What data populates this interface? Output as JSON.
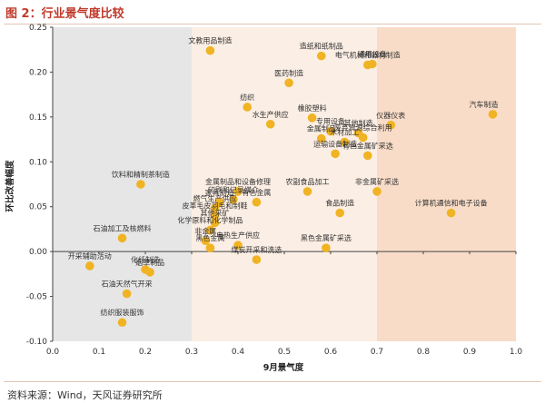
{
  "header": {
    "title": "图 2：行业景气度比较"
  },
  "footer": {
    "source": "资料来源：Wind，天风证券研究所"
  },
  "chart_data": {
    "type": "scatter",
    "xlabel": "9月景气度",
    "ylabel": "环比改善幅度",
    "xlim": [
      0.0,
      1.0
    ],
    "ylim": [
      -0.1,
      0.25
    ],
    "xticks": [
      "0.0",
      "0.1",
      "0.2",
      "0.3",
      "0.4",
      "0.5",
      "0.6",
      "0.7",
      "0.8",
      "0.9",
      "1.0"
    ],
    "yticks": [
      "0.25",
      "0.20",
      "0.15",
      "0.10",
      "0.05",
      "0.00",
      "-0.05",
      "-0.10"
    ],
    "grid": false,
    "point_color": "#f0b323",
    "regions": [
      {
        "from": 0.0,
        "to": 0.3,
        "color": "#e6e6e6"
      },
      {
        "from": 0.3,
        "to": 0.7,
        "color": "#fbeee4"
      },
      {
        "from": 0.7,
        "to": 1.0,
        "color": "#f8dcc7"
      }
    ],
    "points": [
      {
        "label": "文教用品制造",
        "x": 0.34,
        "y": 0.224
      },
      {
        "label": "造纸和纸制品",
        "x": 0.58,
        "y": 0.218
      },
      {
        "label": "通用设备",
        "x": 0.69,
        "y": 0.209
      },
      {
        "label": "电气机械和器材制造",
        "x": 0.68,
        "y": 0.208
      },
      {
        "label": "医药制造",
        "x": 0.51,
        "y": 0.188
      },
      {
        "label": "纺织",
        "x": 0.42,
        "y": 0.161
      },
      {
        "label": "橡胶塑料",
        "x": 0.56,
        "y": 0.149
      },
      {
        "label": "水生产供应",
        "x": 0.47,
        "y": 0.142
      },
      {
        "label": "汽车制造",
        "x": 0.95,
        "y": 0.153
      },
      {
        "label": "仪器仪表",
        "x": 0.73,
        "y": 0.141
      },
      {
        "label": "专用设备",
        "x": 0.6,
        "y": 0.134
      },
      {
        "label": "其他制造",
        "x": 0.66,
        "y": 0.132
      },
      {
        "label": "废弃资源综合利用",
        "x": 0.67,
        "y": 0.127
      },
      {
        "label": "木材加工",
        "x": 0.63,
        "y": 0.122
      },
      {
        "label": "金属制品",
        "x": 0.58,
        "y": 0.126
      },
      {
        "label": "运输设备制造",
        "x": 0.61,
        "y": 0.109
      },
      {
        "label": "有色金属矿采选",
        "x": 0.68,
        "y": 0.107
      },
      {
        "label": "饮料和精制茶制造",
        "x": 0.19,
        "y": 0.075
      },
      {
        "label": "金属制品和设备修理",
        "x": 0.4,
        "y": 0.067
      },
      {
        "label": "农副食品加工",
        "x": 0.55,
        "y": 0.067
      },
      {
        "label": "非金属矿采选",
        "x": 0.7,
        "y": 0.067
      },
      {
        "label": "印刷和记录媒介",
        "x": 0.39,
        "y": 0.058
      },
      {
        "label": "家具制造",
        "x": 0.36,
        "y": 0.055
      },
      {
        "label": "有色金属",
        "x": 0.44,
        "y": 0.055
      },
      {
        "label": "燃气生产供应",
        "x": 0.35,
        "y": 0.048
      },
      {
        "label": "计算机通信和电子设备",
        "x": 0.86,
        "y": 0.043
      },
      {
        "label": "食品制造",
        "x": 0.62,
        "y": 0.043
      },
      {
        "label": "皮革毛皮羽毛和制鞋",
        "x": 0.35,
        "y": 0.04
      },
      {
        "label": "其他采矿",
        "x": 0.35,
        "y": 0.032
      },
      {
        "label": "化学原料和化学制品",
        "x": 0.34,
        "y": 0.024
      },
      {
        "label": "石油加工及核燃料",
        "x": 0.15,
        "y": 0.015
      },
      {
        "label": "非金属",
        "x": 0.33,
        "y": 0.012
      },
      {
        "label": "黑色金属",
        "x": 0.34,
        "y": 0.004
      },
      {
        "label": "电热生产供应",
        "x": 0.4,
        "y": 0.007
      },
      {
        "label": "黑色金属矿采选",
        "x": 0.59,
        "y": 0.004
      },
      {
        "label": "开采辅助活动",
        "x": 0.08,
        "y": -0.016
      },
      {
        "label": "化纤制造",
        "x": 0.2,
        "y": -0.02
      },
      {
        "label": "烟草制品",
        "x": 0.21,
        "y": -0.023
      },
      {
        "label": "煤炭开采和洗选",
        "x": 0.44,
        "y": -0.009
      },
      {
        "label": "石油天然气开采",
        "x": 0.16,
        "y": -0.047
      },
      {
        "label": "纺织服装服饰",
        "x": 0.15,
        "y": -0.079
      }
    ]
  }
}
